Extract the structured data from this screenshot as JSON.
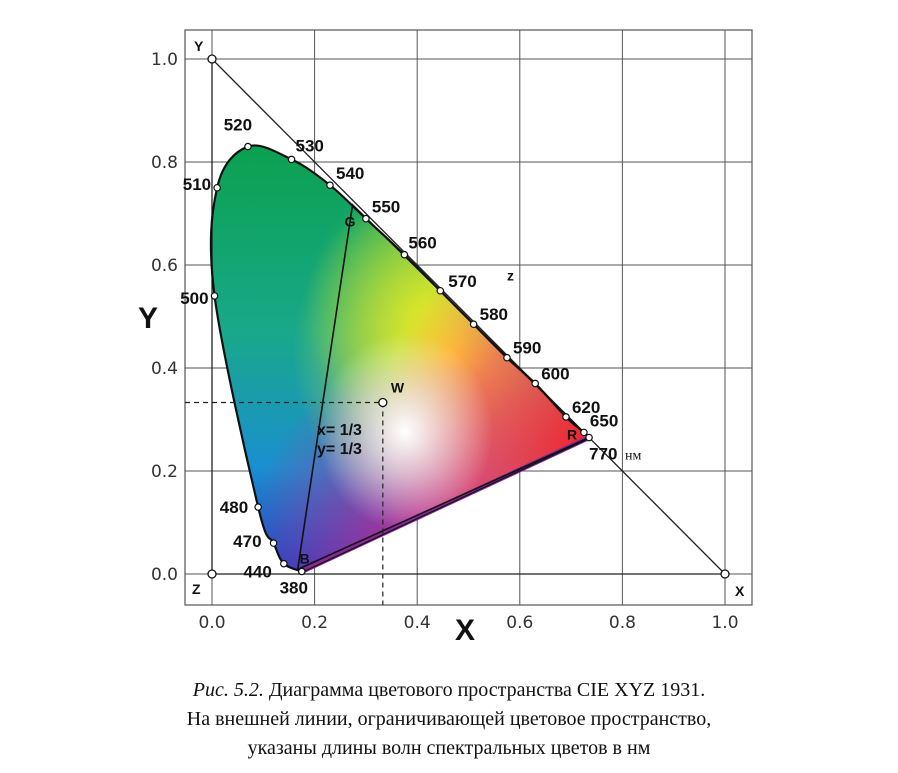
{
  "chart_data": {
    "type": "scatter",
    "xlabel": "X",
    "ylabel": "Y",
    "xlim": [
      0.0,
      1.0
    ],
    "ylim": [
      0.0,
      1.0
    ],
    "xticks": [
      "0.0",
      "0.2",
      "0.4",
      "0.6",
      "0.8",
      "1.0"
    ],
    "yticks": [
      "0.0",
      "0.2",
      "0.4",
      "0.6",
      "0.8",
      "1.0"
    ],
    "grid": true,
    "spectral_locus": [
      {
        "label": "380",
        "x": 0.175,
        "y": 0.005
      },
      {
        "label": "440",
        "x": 0.14,
        "y": 0.02
      },
      {
        "label": "470",
        "x": 0.12,
        "y": 0.06
      },
      {
        "label": "480",
        "x": 0.09,
        "y": 0.13
      },
      {
        "label": "500",
        "x": 0.005,
        "y": 0.54
      },
      {
        "label": "510",
        "x": 0.01,
        "y": 0.75
      },
      {
        "label": "520",
        "x": 0.07,
        "y": 0.83
      },
      {
        "label": "530",
        "x": 0.155,
        "y": 0.805
      },
      {
        "label": "540",
        "x": 0.23,
        "y": 0.755
      },
      {
        "label": "550",
        "x": 0.3,
        "y": 0.69
      },
      {
        "label": "560",
        "x": 0.375,
        "y": 0.62
      },
      {
        "label": "570",
        "x": 0.445,
        "y": 0.55
      },
      {
        "label": "580",
        "x": 0.51,
        "y": 0.485
      },
      {
        "label": "590",
        "x": 0.575,
        "y": 0.42
      },
      {
        "label": "600",
        "x": 0.63,
        "y": 0.37
      },
      {
        "label": "620",
        "x": 0.69,
        "y": 0.305
      },
      {
        "label": "650",
        "x": 0.725,
        "y": 0.275
      },
      {
        "label": "770",
        "x": 0.735,
        "y": 0.265
      }
    ],
    "locus_unit": "нм",
    "triangle_vertices": [
      {
        "label": "Y",
        "x": 0.0,
        "y": 1.0
      },
      {
        "label": "X",
        "x": 1.0,
        "y": 0.0
      },
      {
        "label": "Z",
        "x": 0.0,
        "y": 0.0
      }
    ],
    "points": [
      {
        "label": "W",
        "x": 0.333,
        "y": 0.333
      },
      {
        "label": "R",
        "x": 0.735,
        "y": 0.265
      },
      {
        "label": "G",
        "x": 0.274,
        "y": 0.717
      },
      {
        "label": "B",
        "x": 0.167,
        "y": 0.009
      }
    ],
    "side_label": {
      "label": "z",
      "x": 0.575,
      "y": 0.57
    },
    "white_point_annotation": [
      "x= 1/3",
      "y= 1/3"
    ]
  },
  "caption": {
    "lead": "Рис. 5.2.",
    "line1": " Диаграмма цветового пространства CIE XYZ 1931.",
    "line2": "На внешней линии, ограничивающей цветовое пространство,",
    "line3": "указаны длины волн спектральных цветов в нм"
  }
}
